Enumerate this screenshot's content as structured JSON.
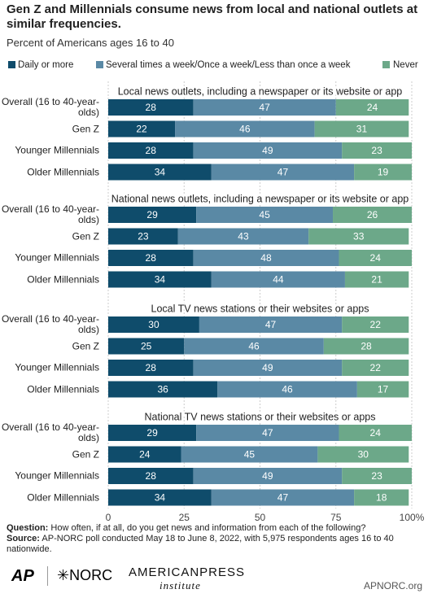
{
  "header": {
    "title": "Gen Z and Millennials consume news from local and national outlets at similar frequencies.",
    "subtitle": "Percent of Americans ages 16 to 40"
  },
  "chart_data": [
    {
      "type": "stacked-bar",
      "title": "Local news outlets, including a newspaper or its website or app",
      "categories": [
        "Overall (16 to 40-year-olds)",
        "Gen Z",
        "Younger Millennials",
        "Older Millennials"
      ],
      "series": [
        {
          "name": "Daily or more",
          "color": "#0f4c6b",
          "values": [
            28,
            22,
            28,
            34
          ]
        },
        {
          "name": "Several times a week/Once a week/Less than once a week",
          "color": "#5a89a5",
          "values": [
            47,
            46,
            49,
            47
          ]
        },
        {
          "name": "Never",
          "color": "#6ca889",
          "values": [
            24,
            31,
            23,
            19
          ]
        }
      ],
      "xlim": [
        0,
        100
      ]
    },
    {
      "type": "stacked-bar",
      "title": "National news outlets, including a newspaper or its website or app",
      "categories": [
        "Overall (16 to 40-year-olds)",
        "Gen Z",
        "Younger Millennials",
        "Older Millennials"
      ],
      "series": [
        {
          "name": "Daily or more",
          "color": "#0f4c6b",
          "values": [
            29,
            23,
            28,
            34
          ]
        },
        {
          "name": "Several times a week/Once a week/Less than once a week",
          "color": "#5a89a5",
          "values": [
            45,
            43,
            48,
            44
          ]
        },
        {
          "name": "Never",
          "color": "#6ca889",
          "values": [
            26,
            33,
            24,
            21
          ]
        }
      ],
      "xlim": [
        0,
        100
      ]
    },
    {
      "type": "stacked-bar",
      "title": "Local TV news stations or their websites or apps",
      "categories": [
        "Overall (16 to 40-year-olds)",
        "Gen Z",
        "Younger Millennials",
        "Older Millennials"
      ],
      "series": [
        {
          "name": "Daily or more",
          "color": "#0f4c6b",
          "values": [
            30,
            25,
            28,
            36
          ]
        },
        {
          "name": "Several times a week/Once a week/Less than once a week",
          "color": "#5a89a5",
          "values": [
            47,
            46,
            49,
            46
          ]
        },
        {
          "name": "Never",
          "color": "#6ca889",
          "values": [
            22,
            28,
            22,
            17
          ]
        }
      ],
      "xlim": [
        0,
        100
      ]
    },
    {
      "type": "stacked-bar",
      "title": "National TV news stations or their websites or apps",
      "categories": [
        "Overall (16 to 40-year-olds)",
        "Gen Z",
        "Younger Millennials",
        "Older Millennials"
      ],
      "series": [
        {
          "name": "Daily or more",
          "color": "#0f4c6b",
          "values": [
            29,
            24,
            28,
            34
          ]
        },
        {
          "name": "Several times a week/Once a week/Less than once a week",
          "color": "#5a89a5",
          "values": [
            47,
            45,
            49,
            47
          ]
        },
        {
          "name": "Never",
          "color": "#6ca889",
          "values": [
            24,
            30,
            23,
            18
          ]
        }
      ],
      "xlim": [
        0,
        100
      ],
      "xticks": [
        0,
        25,
        50,
        75,
        {
          "value": 100,
          "label": "100%"
        }
      ],
      "grid": true
    }
  ],
  "footer": {
    "question_label": "Question:",
    "question": "How often, if at all, do you get news and information from each of the following?",
    "source_label": "Source:",
    "source": "AP-NORC poll conducted May 18 to June 8, 2022, with 5,975 respondents ages 16 to 40 nationwide.",
    "logos": [
      "AP",
      "NORC",
      "AMERICANPRESS",
      "institute"
    ],
    "site": "APNORC.org"
  }
}
